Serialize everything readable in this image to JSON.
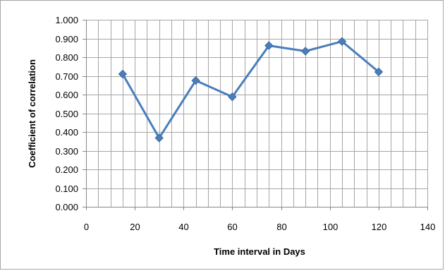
{
  "chart_data": {
    "type": "line",
    "title": "",
    "xlabel": "Time interval in Days",
    "ylabel": "Coefficient of correlation",
    "xlim": [
      0,
      140
    ],
    "ylim": [
      0,
      1.0
    ],
    "x_ticks": [
      "0",
      "20",
      "40",
      "60",
      "80",
      "100",
      "120",
      "140"
    ],
    "y_ticks": [
      "0.000",
      "0.100",
      "0.200",
      "0.300",
      "0.400",
      "0.500",
      "0.600",
      "0.700",
      "0.800",
      "0.900",
      "1.000"
    ],
    "grid": true,
    "legend": "none",
    "series": [
      {
        "x": [
          15,
          30,
          45,
          60,
          75,
          90,
          105,
          120
        ],
        "y": [
          0.71,
          0.368,
          0.675,
          0.588,
          0.862,
          0.832,
          0.884,
          0.721
        ],
        "color": "#4a7ebb",
        "marker": "diamond"
      }
    ]
  }
}
